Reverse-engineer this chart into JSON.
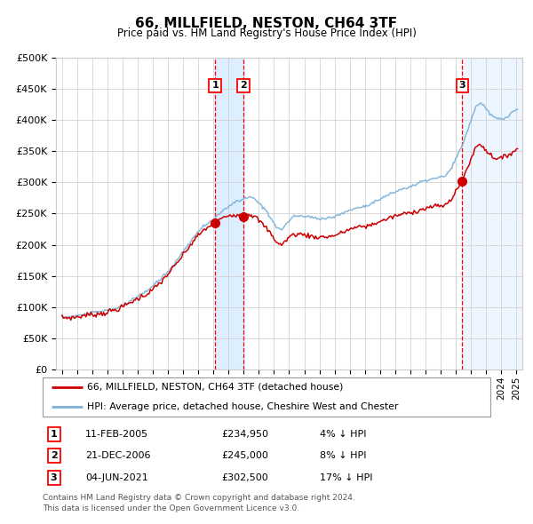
{
  "title": "66, MILLFIELD, NESTON, CH64 3TF",
  "subtitle": "Price paid vs. HM Land Registry's House Price Index (HPI)",
  "ytick_values": [
    0,
    50000,
    100000,
    150000,
    200000,
    250000,
    300000,
    350000,
    400000,
    450000,
    500000
  ],
  "ylim": [
    0,
    500000
  ],
  "sales": [
    {
      "num": 1,
      "date_str": "11-FEB-2005",
      "price": 234950,
      "pct": "4%",
      "date_x": 2005.11
    },
    {
      "num": 2,
      "date_str": "21-DEC-2006",
      "price": 245000,
      "pct": "8%",
      "date_x": 2006.97
    },
    {
      "num": 3,
      "date_str": "04-JUN-2021",
      "price": 302500,
      "pct": "17%",
      "date_x": 2021.42
    }
  ],
  "hpi_color": "#7ab0d8",
  "price_color": "#cc0000",
  "shading_color": "#dceeff",
  "grid_color": "#cccccc",
  "background_color": "#ffffff",
  "legend_line1": "66, MILLFIELD, NESTON, CH64 3TF (detached house)",
  "legend_line2": "HPI: Average price, detached house, Cheshire West and Chester",
  "footer": "Contains HM Land Registry data © Crown copyright and database right 2024.\nThis data is licensed under the Open Government Licence v3.0.",
  "xlim_start": 1994.6,
  "xlim_end": 2025.4
}
